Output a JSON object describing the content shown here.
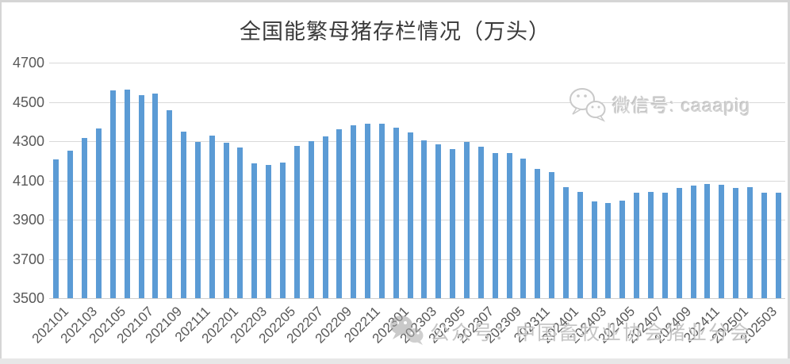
{
  "page": {
    "background": "#ffffff",
    "frame_color": "#d5d5d5",
    "bottom_strip_color": "#e7e7e7"
  },
  "chart_data": {
    "type": "bar",
    "title": "全国能繁母猪存栏情况（万头）",
    "xlabel": "",
    "ylabel": "",
    "ylim": [
      3500,
      4700
    ],
    "yticks": [
      3500,
      3700,
      3900,
      4100,
      4300,
      4500,
      4700
    ],
    "grid": true,
    "legend_position": "none",
    "bar_color": "#5b9bd5",
    "gridline_color": "#d9d9d9",
    "axis_text_color": "#595959",
    "title_color": "#3a3a3a",
    "xtick_every": 2,
    "categories": [
      "202101",
      "202102",
      "202103",
      "202104",
      "202105",
      "202106",
      "202107",
      "202108",
      "202109",
      "202110",
      "202111",
      "202112",
      "202201",
      "202202",
      "202203",
      "202204",
      "202205",
      "202206",
      "202207",
      "202208",
      "202209",
      "202210",
      "202211",
      "202212",
      "202301",
      "202302",
      "202303",
      "202304",
      "202305",
      "202306",
      "202307",
      "202308",
      "202309",
      "202310",
      "202311",
      "202312",
      "202401",
      "202402",
      "202403",
      "202404",
      "202405",
      "202406",
      "202407",
      "202408",
      "202409",
      "202410",
      "202411",
      "202412",
      "202501",
      "202502",
      "202503",
      "202504"
    ],
    "values": [
      4207,
      4250,
      4318,
      4364,
      4560,
      4564,
      4536,
      4541,
      4459,
      4348,
      4296,
      4329,
      4290,
      4268,
      4185,
      4177,
      4192,
      4277,
      4298,
      4324,
      4362,
      4379,
      4388,
      4390,
      4367,
      4343,
      4305,
      4284,
      4258,
      4296,
      4271,
      4241,
      4240,
      4210,
      4158,
      4142,
      4067,
      4042,
      3992,
      3986,
      3996,
      4038,
      4041,
      4036,
      4062,
      4073,
      4080,
      4078,
      4062,
      4066,
      4039,
      4038
    ]
  },
  "watermarks": {
    "top_right": {
      "icon": "wechat-icon",
      "text": "微信号: caaapig"
    },
    "bottom": {
      "icon": "wechat-icon",
      "text": "公众号：中国畜牧业协会猪业分会"
    }
  }
}
